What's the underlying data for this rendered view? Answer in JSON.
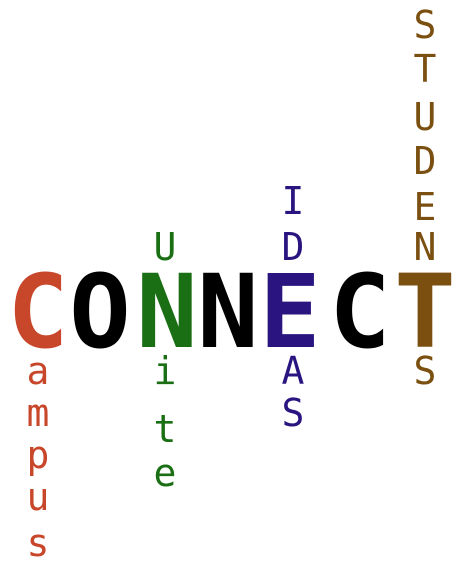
{
  "words": [
    {
      "text": "CONNECT",
      "color": "#000000"
    },
    {
      "text": "Campus",
      "color": "#c8472b"
    },
    {
      "text": "Unite",
      "color": "#1a6e14"
    },
    {
      "text": "IDEAS",
      "color": "#2a1580"
    },
    {
      "text": "STUDENTS",
      "color": "#7a4f10"
    }
  ],
  "highlight_colors": {
    "C": "#c8472b",
    "N": "#1a6e14",
    "E": "#2a1580",
    "T": "#7a4f10"
  }
}
